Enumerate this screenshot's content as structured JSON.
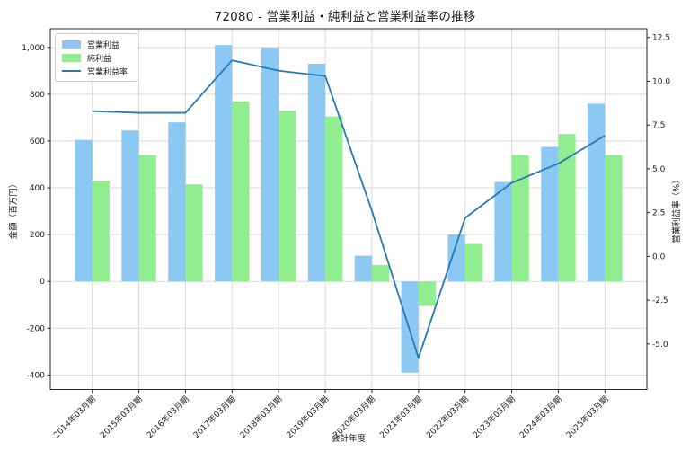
{
  "chart_data": {
    "type": "bar",
    "subtype": "grouped-bars-with-line-overlay",
    "title": "72080 - 営業利益・純利益と営業利益率の推移",
    "xlabel": "会計年度",
    "ylabel_left": "金額（百万円）",
    "ylabel_right": "営業利益率（%）",
    "categories": [
      "2014年03月期",
      "2015年03月期",
      "2016年03月期",
      "2017年03月期",
      "2018年03月期",
      "2019年03月期",
      "2020年03月期",
      "2021年03月期",
      "2022年03月期",
      "2023年03月期",
      "2024年03月期",
      "2025年03月期"
    ],
    "series": [
      {
        "name": "営業利益",
        "type": "bar",
        "axis": "left",
        "color": "#8cc8f4",
        "values": [
          605,
          645,
          680,
          1010,
          1000,
          930,
          110,
          -390,
          200,
          425,
          575,
          760
        ]
      },
      {
        "name": "純利益",
        "type": "bar",
        "axis": "left",
        "color": "#90ee90",
        "values": [
          430,
          540,
          415,
          770,
          730,
          705,
          70,
          -105,
          160,
          540,
          630,
          540
        ]
      },
      {
        "name": "営業利益率",
        "type": "line",
        "axis": "right",
        "color": "#2878b5",
        "values": [
          8.3,
          8.2,
          8.2,
          11.2,
          10.6,
          10.3,
          2.6,
          -5.8,
          2.2,
          4.2,
          5.3,
          6.9
        ]
      }
    ],
    "left_axis": {
      "ticks": [
        -400,
        -200,
        0,
        200,
        400,
        600,
        800,
        1000
      ],
      "tick_labels": [
        "-400",
        "-200",
        "0",
        "200",
        "400",
        "600",
        "800",
        "1,000"
      ],
      "lim": [
        -462,
        1080
      ]
    },
    "right_axis": {
      "ticks": [
        -5,
        -2.5,
        0,
        2.5,
        5,
        7.5,
        10,
        12.5
      ],
      "tick_labels": [
        "-5.0",
        "-2.5",
        "0.0",
        "2.5",
        "5.0",
        "7.5",
        "10.0",
        "12.5"
      ],
      "lim": [
        -7.6,
        13.0
      ]
    },
    "xlim": [
      -0.9,
      11.9
    ],
    "grid": true,
    "legend_position": "upper left",
    "colors": {
      "grid": "#d9d9d9",
      "spine": "#262626",
      "background": "#ffffff",
      "text": "#1a1a1a"
    }
  }
}
